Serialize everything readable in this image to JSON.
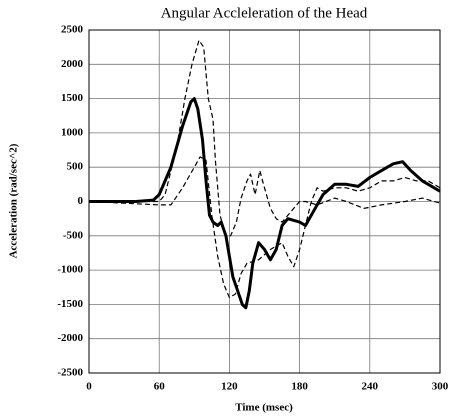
{
  "chart_data": {
    "type": "line",
    "title": "Angular Accleleration of the Head",
    "x_label": "Time (msec)",
    "y_label": "Acceleration (rad/sec^2)",
    "xlim": [
      0,
      300
    ],
    "xticks": [
      0,
      60,
      120,
      180,
      240,
      300
    ],
    "ylim": [
      -2500,
      2500
    ],
    "yticks": [
      -2500,
      -2000,
      -1500,
      -1000,
      -500,
      0,
      500,
      1000,
      1500,
      2000,
      2500
    ],
    "grid": true,
    "series": [
      {
        "color": "#000000",
        "dash": "solid",
        "width": 3,
        "x": [
          0,
          40,
          55,
          60,
          70,
          80,
          87,
          90,
          93,
          97,
          100,
          103,
          106,
          110,
          113,
          117,
          120,
          123,
          127,
          131,
          134,
          137,
          140,
          145,
          150,
          155,
          160,
          165,
          170,
          180,
          185,
          190,
          200,
          210,
          220,
          230,
          240,
          250,
          260,
          268,
          275,
          285,
          295,
          300
        ],
        "values": [
          0,
          0,
          20,
          100,
          500,
          1100,
          1450,
          1500,
          1350,
          900,
          300,
          -200,
          -300,
          -350,
          -300,
          -500,
          -800,
          -1100,
          -1300,
          -1500,
          -1550,
          -1300,
          -900,
          -600,
          -700,
          -850,
          -700,
          -350,
          -250,
          -300,
          -350,
          -200,
          100,
          250,
          250,
          220,
          350,
          450,
          550,
          580,
          450,
          300,
          200,
          150
        ]
      },
      {
        "color": "#000000",
        "dash": "dashed",
        "width": 1.2,
        "x": [
          0,
          60,
          65,
          75,
          82,
          88,
          94,
          98,
          102,
          106,
          108,
          112,
          117,
          121,
          126,
          130,
          135,
          138,
          142,
          146,
          150,
          155,
          160,
          165,
          170,
          180,
          185,
          195,
          210,
          220,
          235,
          250,
          270,
          285,
          295,
          300
        ],
        "values": [
          0,
          0,
          100,
          800,
          1500,
          2000,
          2350,
          2250,
          1500,
          1200,
          600,
          -200,
          -500,
          -500,
          -300,
          50,
          300,
          400,
          100,
          450,
          200,
          -100,
          -250,
          -300,
          -200,
          0,
          0,
          -50,
          50,
          0,
          -100,
          -50,
          0,
          50,
          0,
          -20
        ]
      },
      {
        "color": "#000000",
        "dash": "dashed",
        "width": 1.2,
        "x": [
          0,
          60,
          70,
          80,
          90,
          95,
          100,
          105,
          110,
          115,
          120,
          125,
          130,
          135,
          145,
          155,
          165,
          170,
          175,
          180,
          190,
          195,
          200,
          210,
          220,
          230,
          240,
          250,
          260,
          270,
          280,
          290,
          300
        ],
        "values": [
          0,
          -50,
          -50,
          200,
          500,
          650,
          600,
          -200,
          -800,
          -1200,
          -1400,
          -1350,
          -1050,
          -900,
          -850,
          -700,
          -600,
          -800,
          -950,
          -700,
          0,
          200,
          150,
          200,
          200,
          150,
          200,
          300,
          300,
          350,
          300,
          300,
          200
        ]
      }
    ]
  }
}
